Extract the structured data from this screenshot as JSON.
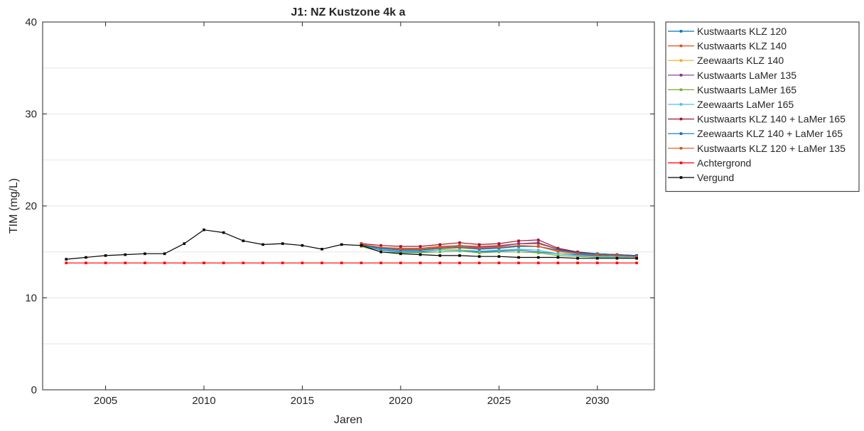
{
  "chart_data": {
    "type": "line",
    "title": "J1: NZ Kustzone 4k a",
    "xlabel": "Jaren",
    "ylabel": "TIM (mg/L)",
    "xlim": [
      2001.8,
      2032.9
    ],
    "ylim": [
      0,
      40
    ],
    "xticks": [
      2005,
      2010,
      2015,
      2020,
      2025,
      2030
    ],
    "yticks": [
      0,
      10,
      20,
      30,
      40
    ],
    "grid": "horizontal",
    "legend_position": "outside-right",
    "series": [
      {
        "name": "Kustwaarts KLZ 120",
        "color": "#0072bd",
        "x": [
          2018,
          2019,
          2020,
          2021,
          2022,
          2023,
          2024,
          2025,
          2026,
          2027,
          2028,
          2029,
          2030,
          2031,
          2032
        ],
        "y": [
          15.7,
          15.2,
          15.0,
          15.0,
          15.2,
          15.2,
          15.0,
          15.1,
          15.2,
          15.0,
          14.8,
          14.7,
          14.6,
          14.5,
          14.5
        ]
      },
      {
        "name": "Kustwaarts KLZ 140",
        "color": "#d95319",
        "x": [
          2018,
          2019,
          2020,
          2021,
          2022,
          2023,
          2024,
          2025,
          2026,
          2027,
          2028,
          2029,
          2030,
          2031,
          2032
        ],
        "y": [
          15.8,
          15.5,
          15.4,
          15.4,
          15.6,
          15.7,
          15.6,
          15.7,
          15.9,
          15.9,
          15.3,
          15.0,
          14.8,
          14.7,
          14.6
        ]
      },
      {
        "name": "Zeewaarts KLZ 140",
        "color": "#edb120",
        "x": [
          2018,
          2019,
          2020,
          2021,
          2022,
          2023,
          2024,
          2025,
          2026,
          2027,
          2028,
          2029,
          2030,
          2031,
          2032
        ],
        "y": [
          15.7,
          15.3,
          15.2,
          15.2,
          15.3,
          15.4,
          15.3,
          15.4,
          15.6,
          15.6,
          15.0,
          14.8,
          14.7,
          14.6,
          14.5
        ]
      },
      {
        "name": "Kustwaarts LaMer 135",
        "color": "#7e2f8e",
        "x": [
          2018,
          2019,
          2020,
          2021,
          2022,
          2023,
          2024,
          2025,
          2026,
          2027,
          2028,
          2029,
          2030,
          2031,
          2032
        ],
        "y": [
          15.8,
          15.4,
          15.2,
          15.3,
          15.5,
          15.6,
          15.5,
          15.6,
          15.9,
          16.0,
          15.3,
          14.9,
          14.7,
          14.6,
          14.6
        ]
      },
      {
        "name": "Kustwaarts LaMer 165",
        "color": "#77ac30",
        "x": [
          2018,
          2019,
          2020,
          2021,
          2022,
          2023,
          2024,
          2025,
          2026,
          2027,
          2028,
          2029,
          2030,
          2031,
          2032
        ],
        "y": [
          15.6,
          15.0,
          14.9,
          14.9,
          15.0,
          15.1,
          14.9,
          15.0,
          15.0,
          14.9,
          14.6,
          14.5,
          14.4,
          14.4,
          14.3
        ]
      },
      {
        "name": "Zeewaarts LaMer 165",
        "color": "#4dbeee",
        "x": [
          2018,
          2019,
          2020,
          2021,
          2022,
          2023,
          2024,
          2025,
          2026,
          2027,
          2028,
          2029,
          2030,
          2031,
          2032
        ],
        "y": [
          15.7,
          15.3,
          15.1,
          15.1,
          15.2,
          15.2,
          15.1,
          15.2,
          15.3,
          15.2,
          14.8,
          14.6,
          14.5,
          14.5,
          14.4
        ]
      },
      {
        "name": "Kustwaarts KLZ 140 + LaMer 165",
        "color": "#a2142f",
        "x": [
          2018,
          2019,
          2020,
          2021,
          2022,
          2023,
          2024,
          2025,
          2026,
          2027,
          2028,
          2029,
          2030,
          2031,
          2032
        ],
        "y": [
          15.9,
          15.7,
          15.6,
          15.6,
          15.8,
          16.0,
          15.8,
          15.9,
          16.2,
          16.3,
          15.4,
          15.0,
          14.8,
          14.7,
          14.6
        ]
      },
      {
        "name": "Zeewaarts KLZ 140 + LaMer 165",
        "color": "#0072bd",
        "x": [
          2018,
          2019,
          2020,
          2021,
          2022,
          2023,
          2024,
          2025,
          2026,
          2027,
          2028,
          2029,
          2030,
          2031,
          2032
        ],
        "y": [
          15.7,
          15.4,
          15.2,
          15.2,
          15.4,
          15.5,
          15.3,
          15.4,
          15.6,
          15.6,
          15.2,
          14.9,
          14.8,
          14.7,
          14.6
        ]
      },
      {
        "name": "Kustwaarts KLZ 120 + LaMer 135",
        "color": "#d95319",
        "x": [
          2018,
          2019,
          2020,
          2021,
          2022,
          2023,
          2024,
          2025,
          2026,
          2027,
          2028,
          2029,
          2030,
          2031,
          2032
        ],
        "y": [
          15.8,
          15.5,
          15.3,
          15.3,
          15.5,
          15.6,
          15.4,
          15.5,
          15.7,
          15.6,
          15.1,
          14.8,
          14.7,
          14.6,
          14.5
        ]
      },
      {
        "name": "Achtergrond",
        "color": "#ff0000",
        "x": [
          2003,
          2004,
          2005,
          2006,
          2007,
          2008,
          2009,
          2010,
          2011,
          2012,
          2013,
          2014,
          2015,
          2016,
          2017,
          2018,
          2019,
          2020,
          2021,
          2022,
          2023,
          2024,
          2025,
          2026,
          2027,
          2028,
          2029,
          2030,
          2031,
          2032
        ],
        "y": [
          13.8,
          13.8,
          13.8,
          13.8,
          13.8,
          13.8,
          13.8,
          13.8,
          13.8,
          13.8,
          13.8,
          13.8,
          13.8,
          13.8,
          13.8,
          13.8,
          13.8,
          13.8,
          13.8,
          13.8,
          13.8,
          13.8,
          13.8,
          13.8,
          13.8,
          13.8,
          13.8,
          13.8,
          13.8,
          13.8
        ]
      },
      {
        "name": "Vergund",
        "color": "#000000",
        "x": [
          2003,
          2004,
          2005,
          2006,
          2007,
          2008,
          2009,
          2010,
          2011,
          2012,
          2013,
          2014,
          2015,
          2016,
          2017,
          2018,
          2019,
          2020,
          2021,
          2022,
          2023,
          2024,
          2025,
          2026,
          2027,
          2028,
          2029,
          2030,
          2031,
          2032
        ],
        "y": [
          14.2,
          14.4,
          14.6,
          14.7,
          14.8,
          14.8,
          15.9,
          17.4,
          17.1,
          16.2,
          15.8,
          15.9,
          15.7,
          15.3,
          15.8,
          15.7,
          15.0,
          14.8,
          14.7,
          14.6,
          14.6,
          14.5,
          14.5,
          14.4,
          14.4,
          14.4,
          14.3,
          14.3,
          14.3,
          14.3
        ]
      }
    ]
  }
}
